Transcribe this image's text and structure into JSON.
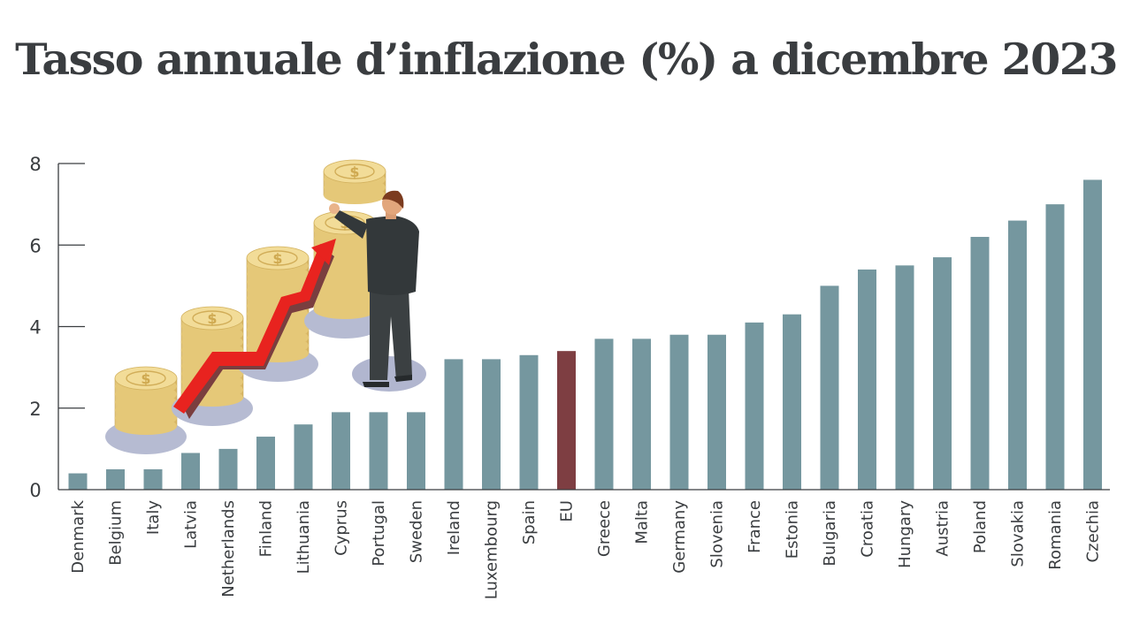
{
  "chart_data": {
    "type": "bar",
    "title": "Tasso annuale d’inflazione (%) a dicembre 2023",
    "xlabel": "",
    "ylabel": "",
    "ylim": [
      0,
      8
    ],
    "yticks": [
      "0",
      "2",
      "4",
      "6",
      "8"
    ],
    "categories": [
      "Denmark",
      "Belgium",
      "Italy",
      "Latvia",
      "Netherlands",
      "Finland",
      "Lithuania",
      "Cyprus",
      "Portugal",
      "Sweden",
      "Ireland",
      "Luxembourg",
      "Spain",
      "EU",
      "Greece",
      "Malta",
      "Germany",
      "Slovenia",
      "France",
      "Estonia",
      "Bulgaria",
      "Croatia",
      "Hungary",
      "Austria",
      "Poland",
      "Slovakia",
      "Romania",
      "Czechia"
    ],
    "values": [
      0.4,
      0.5,
      0.5,
      0.9,
      1.0,
      1.3,
      1.6,
      1.9,
      1.9,
      1.9,
      3.2,
      3.2,
      3.3,
      3.4,
      3.7,
      3.7,
      3.8,
      3.8,
      4.1,
      4.3,
      5.0,
      5.4,
      5.5,
      5.7,
      6.2,
      6.6,
      7.0,
      7.6
    ],
    "grid": false,
    "legend": "none",
    "colors": {
      "bar": "#75979f",
      "highlight": "#7e3e42",
      "highlight_category": "EU",
      "axis": "#3a3d40"
    }
  },
  "decoration": {
    "illustration": "businessman stacking coin piles with rising red arrow"
  }
}
